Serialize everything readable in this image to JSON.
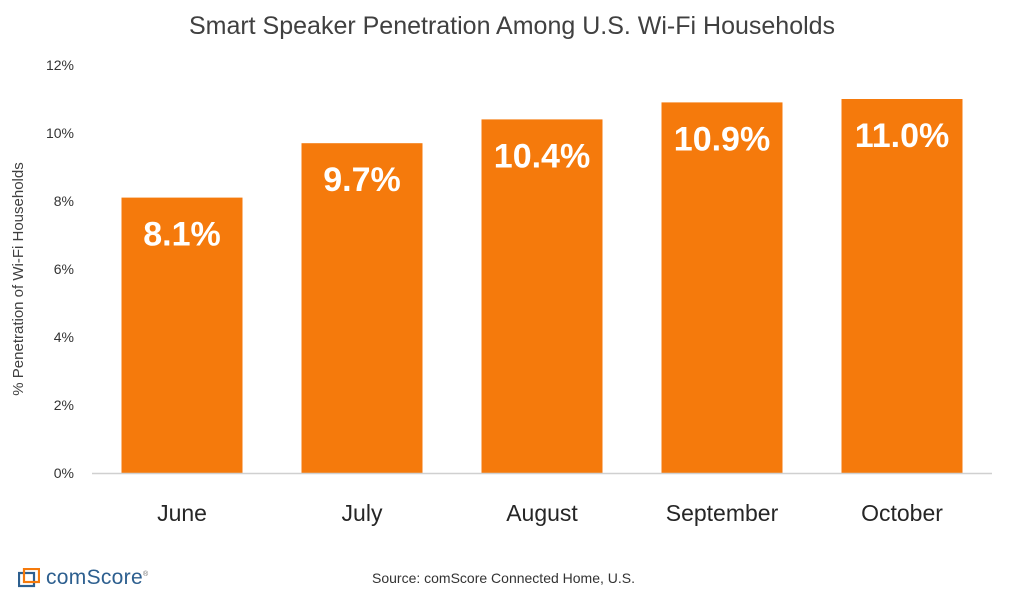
{
  "chart_data": {
    "type": "bar",
    "title": "Smart Speaker Penetration Among U.S. Wi-Fi Households",
    "ylabel": "% Penetration of Wi-Fi Households",
    "xlabel": "",
    "categories": [
      "June",
      "July",
      "August",
      "September",
      "October"
    ],
    "values": [
      8.1,
      9.7,
      10.4,
      10.9,
      11.0
    ],
    "data_labels": [
      "8.1%",
      "9.7%",
      "10.4%",
      "10.9%",
      "11.0%"
    ],
    "ylim": [
      0,
      12
    ],
    "yticks": [
      0,
      2,
      4,
      6,
      8,
      10,
      12
    ],
    "ytick_labels": [
      "0%",
      "2%",
      "4%",
      "6%",
      "8%",
      "10%",
      "12%"
    ],
    "grid": false,
    "bar_color": "#f57a0c",
    "data_label_color": "#ffffff"
  },
  "footer": {
    "logo_text": "comScore",
    "logo_mark": "®",
    "source": "Source: comScore Connected Home, U.S."
  },
  "colors": {
    "logo_blue": "#2d5f8f",
    "logo_orange": "#f57a0c"
  }
}
